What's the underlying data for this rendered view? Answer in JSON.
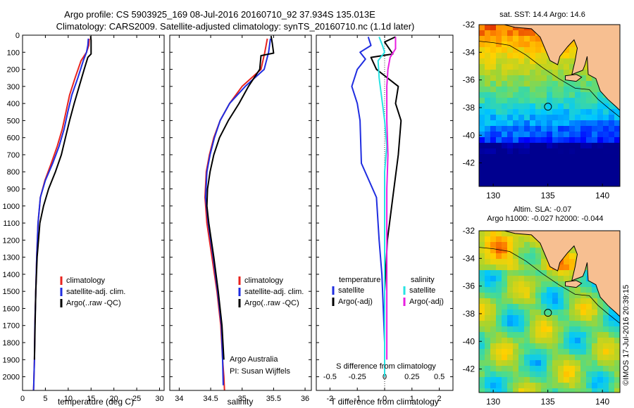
{
  "figure": {
    "title_line1": "Argo profile: CS 5903925_169 08-Jul-2016 20160710_92 37.934S 135.013E",
    "title_line2": "Climatology: CARS2009. Satellite-adjusted climatology: synTS_20160710.nc (1.1d later)",
    "credit": "©IMOS 17-Jul-2016 20:39:15"
  },
  "colors": {
    "climatology": "#e8231e",
    "satellite": "#1f2de0",
    "argo": "#000000",
    "sat_salinity": "#27e3e3",
    "argo_salinity_adj": "#e81ee0",
    "land": "#f7bf91"
  },
  "chart_data": [
    {
      "type": "line",
      "xlabel": "temperature (deg C)",
      "ylabel": "",
      "xlim": [
        0,
        31
      ],
      "ylim": [
        0,
        2080
      ],
      "xticks": [
        0,
        5,
        10,
        15,
        20,
        25,
        30
      ],
      "yticks": [
        0,
        100,
        200,
        300,
        400,
        500,
        600,
        700,
        800,
        900,
        1000,
        1100,
        1200,
        1300,
        1400,
        1500,
        1600,
        1700,
        1800,
        1900,
        2000
      ],
      "legend_placement": "lower-middle",
      "legend": [
        "climatology",
        "satellite-adj. clim.",
        "Argo(..raw -QC)"
      ],
      "series": [
        {
          "name": "climatology",
          "color_key": "climatology",
          "x": [
            14.6,
            14.5,
            14.0,
            12.8,
            11.5,
            10.3,
            9.5,
            8.7,
            7.6,
            6.3,
            4.9,
            3.9,
            3.4,
            3.1,
            2.9,
            2.7,
            2.6,
            2.5,
            2.45,
            2.4
          ],
          "y": [
            20,
            60,
            100,
            150,
            250,
            350,
            450,
            550,
            650,
            750,
            850,
            950,
            1100,
            1300,
            1500,
            1700,
            1900,
            2000,
            2050,
            2080
          ]
        },
        {
          "name": "satellite-adj. clim.",
          "color_key": "satellite",
          "x": [
            14.4,
            14.3,
            14.0,
            13.3,
            12.1,
            10.8,
            9.9,
            9.1,
            8.0,
            6.6,
            5.0,
            3.9,
            3.4,
            3.1,
            2.9,
            2.7,
            2.6,
            2.5,
            2.45,
            2.4
          ],
          "y": [
            20,
            60,
            100,
            150,
            250,
            350,
            450,
            550,
            650,
            750,
            850,
            950,
            1100,
            1300,
            1500,
            1700,
            1900,
            2000,
            2050,
            2080
          ]
        },
        {
          "name": "Argo(..raw -QC)",
          "color_key": "argo",
          "x": [
            14.9,
            15.0,
            15.0,
            14.3,
            13.5,
            12.4,
            11.3,
            10.3,
            9.4,
            8.5,
            7.2,
            5.7,
            4.6,
            3.8,
            3.2,
            2.9,
            2.75,
            2.6
          ],
          "y": [
            5,
            30,
            110,
            130,
            200,
            300,
            400,
            500,
            600,
            700,
            800,
            900,
            1000,
            1100,
            1300,
            1500,
            1700,
            1900
          ]
        }
      ]
    },
    {
      "type": "line",
      "xlabel": "salinity",
      "ylabel": "",
      "xlim": [
        33.85,
        36.1
      ],
      "ylim": [
        0,
        2080
      ],
      "xticks": [
        34,
        34.5,
        35,
        35.5,
        36
      ],
      "legend_placement": "lower-middle",
      "legend": [
        "climatology",
        "satellite-adj. clim.",
        "Argo(..raw -QC)"
      ],
      "annotation": [
        "Argo Australia",
        "PI: Susan Wijffels"
      ],
      "series": [
        {
          "name": "climatology",
          "color_key": "climatology",
          "x": [
            35.4,
            35.36,
            35.3,
            35.0,
            34.8,
            34.65,
            34.55,
            34.48,
            34.43,
            34.41,
            34.44,
            34.52,
            34.6,
            34.66,
            34.69,
            34.71,
            34.72
          ],
          "y": [
            20,
            100,
            200,
            300,
            400,
            500,
            600,
            700,
            800,
            950,
            1100,
            1300,
            1500,
            1700,
            1900,
            2000,
            2080
          ]
        },
        {
          "name": "satellite-adj. clim.",
          "color_key": "satellite",
          "x": [
            35.45,
            35.42,
            35.35,
            35.05,
            34.8,
            34.65,
            34.56,
            34.49,
            34.44,
            34.42,
            34.46,
            34.54,
            34.61,
            34.67,
            34.69,
            34.7
          ],
          "y": [
            20,
            100,
            200,
            300,
            400,
            500,
            600,
            700,
            800,
            950,
            1100,
            1300,
            1500,
            1700,
            1900,
            2050
          ]
        },
        {
          "name": "Argo(..raw -QC)",
          "color_key": "argo",
          "x": [
            35.46,
            35.48,
            35.5,
            35.3,
            35.28,
            35.1,
            34.95,
            34.78,
            34.64,
            34.55,
            34.49,
            34.45,
            34.44,
            34.47,
            34.55,
            34.62,
            34.68,
            34.71
          ],
          "y": [
            5,
            50,
            105,
            120,
            200,
            300,
            400,
            500,
            600,
            700,
            800,
            900,
            1000,
            1100,
            1300,
            1500,
            1700,
            1900
          ]
        }
      ]
    },
    {
      "type": "line",
      "xlabel": "T difference from climatology",
      "xlabel_top": "S difference from climatology",
      "xlim": [
        -2.5,
        2.5
      ],
      "ylim": [
        0,
        2080
      ],
      "xticks": [
        -2,
        -1,
        0,
        1,
        2
      ],
      "xticks_salinity": [
        -0.5,
        -0.25,
        0,
        0.25,
        0.5
      ],
      "legend_placement": "lower-middle",
      "legend_temperature_title": "temperature",
      "legend_salinity_title": "salinity",
      "legend": [
        "satellite",
        "Argo(-adj)",
        "satellite",
        "Argo(-adj)"
      ],
      "series": [
        {
          "name": "satellite",
          "group": "temperature",
          "color_key": "satellite",
          "x": [
            -0.6,
            -0.5,
            -0.9,
            -0.7,
            -1.0,
            -1.2,
            -1.0,
            -0.9,
            -0.85,
            -0.3,
            -0.2,
            -0.1,
            -0.05,
            0.0,
            0.0
          ],
          "y": [
            10,
            60,
            100,
            140,
            200,
            300,
            400,
            500,
            750,
            950,
            1200,
            1400,
            1600,
            1800,
            2000
          ]
        },
        {
          "name": "Argo(-adj)",
          "group": "temperature",
          "color_key": "argo",
          "x": [
            0.4,
            0.0,
            0.3,
            -0.5,
            -0.3,
            0.5,
            0.4,
            0.6,
            0.5,
            0.3,
            0.1,
            0.0,
            0.0
          ],
          "y": [
            10,
            40,
            110,
            130,
            200,
            300,
            400,
            500,
            700,
            950,
            1200,
            1500,
            1900
          ]
        },
        {
          "name": "satellite",
          "group": "salinity",
          "color_key": "sat_salinity",
          "x": [
            -0.05,
            -0.02,
            0.0,
            -0.06,
            -0.05,
            -0.02,
            0.0,
            0.02,
            0.0,
            0.0,
            0.0,
            0.0
          ],
          "y": [
            10,
            60,
            100,
            150,
            250,
            400,
            500,
            650,
            800,
            1000,
            1400,
            2000
          ]
        },
        {
          "name": "Argo(-adj)",
          "group": "salinity",
          "color_key": "argo_salinity_adj",
          "x": [
            0.1,
            0.1,
            0.05,
            0.03,
            0.02,
            0.02,
            0.02,
            0.03,
            0.02,
            0.02,
            0.02,
            0.02
          ],
          "y": [
            10,
            80,
            130,
            200,
            300,
            400,
            500,
            700,
            900,
            1200,
            1500,
            1900
          ]
        }
      ]
    },
    {
      "type": "heatmap",
      "title": "sat. SST: 14.4 Argo: 14.6",
      "xlim": [
        128.7,
        141.6
      ],
      "ylim": [
        -43.7,
        -32
      ],
      "xticks": [
        130,
        135,
        140
      ],
      "yticks": [
        -32,
        -34,
        -36,
        -38,
        -40,
        -42
      ],
      "marker": {
        "lon": 135.013,
        "lat": -37.934
      }
    },
    {
      "type": "heatmap",
      "title_line1": "Altim. SLA: -0.07",
      "title_line2": "Argo h1000: -0.027 h2000: -0.044",
      "xlim": [
        128.7,
        141.6
      ],
      "ylim": [
        -43.7,
        -32
      ],
      "xticks": [
        130,
        135,
        140
      ],
      "yticks": [
        -32,
        -34,
        -36,
        -38,
        -40,
        -42
      ],
      "marker": {
        "lon": 135.013,
        "lat": -37.934
      }
    }
  ]
}
